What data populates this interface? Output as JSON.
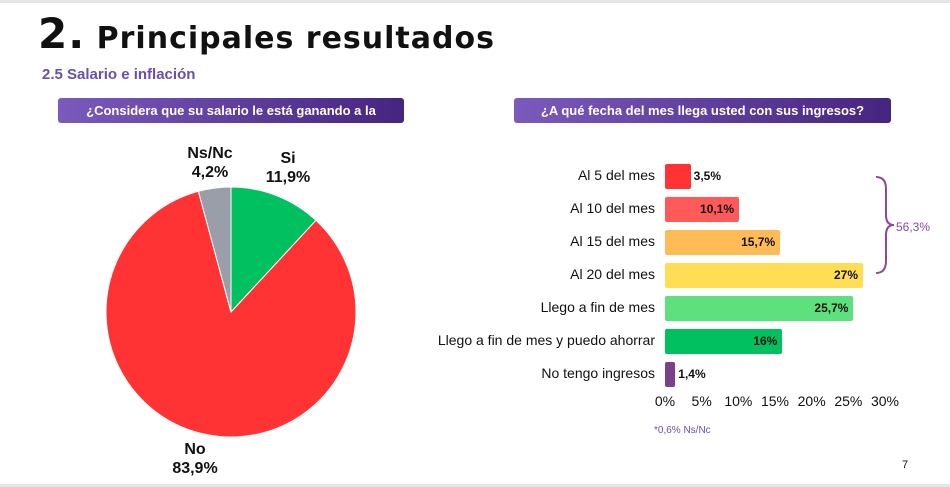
{
  "header": {
    "number": "2.",
    "title": "Principales resultados",
    "subtitle": "2.5 Salario e inflación"
  },
  "page_number": "7",
  "chart_data": [
    {
      "type": "pie",
      "question": "¿Considera que su salario le está ganando a la inflación?",
      "slices": [
        {
          "name": "Si",
          "value": 11.9,
          "label": "11,9%",
          "color": "#00c060"
        },
        {
          "name": "No",
          "value": 83.9,
          "label": "83,9%",
          "color": "#ff3333"
        },
        {
          "name": "Ns/Nc",
          "value": 4.2,
          "label": "4,2%",
          "color": "#9a9ea8"
        }
      ]
    },
    {
      "type": "bar",
      "orientation": "horizontal",
      "question": "¿A qué fecha del mes llega usted con sus ingresos?",
      "categories": [
        "Al 5 del mes",
        "Al 10 del mes",
        "Al 15 del mes",
        "Al 20 del mes",
        "Llego a fin de mes",
        "Llego a fin de mes y puedo ahorrar",
        "No tengo ingresos"
      ],
      "values": [
        3.5,
        10.1,
        15.7,
        27,
        25.7,
        16,
        1.4
      ],
      "labels": [
        "3,5%",
        "10,1%",
        "15,7%",
        "27%",
        "25,7%",
        "16%",
        "1,4%"
      ],
      "colors": [
        "#ff3333",
        "#ff5a5a",
        "#ffbb55",
        "#ffdd55",
        "#5fe07f",
        "#00c060",
        "#7b3f8c"
      ],
      "xlim": [
        0,
        30
      ],
      "xticks": [
        "0%",
        "5%",
        "10%",
        "15%",
        "20%",
        "25%",
        "30%"
      ],
      "bracket": {
        "label": "56,3%",
        "color": "#8a4a9a"
      },
      "note": "*0,6% Ns/Nc"
    }
  ]
}
